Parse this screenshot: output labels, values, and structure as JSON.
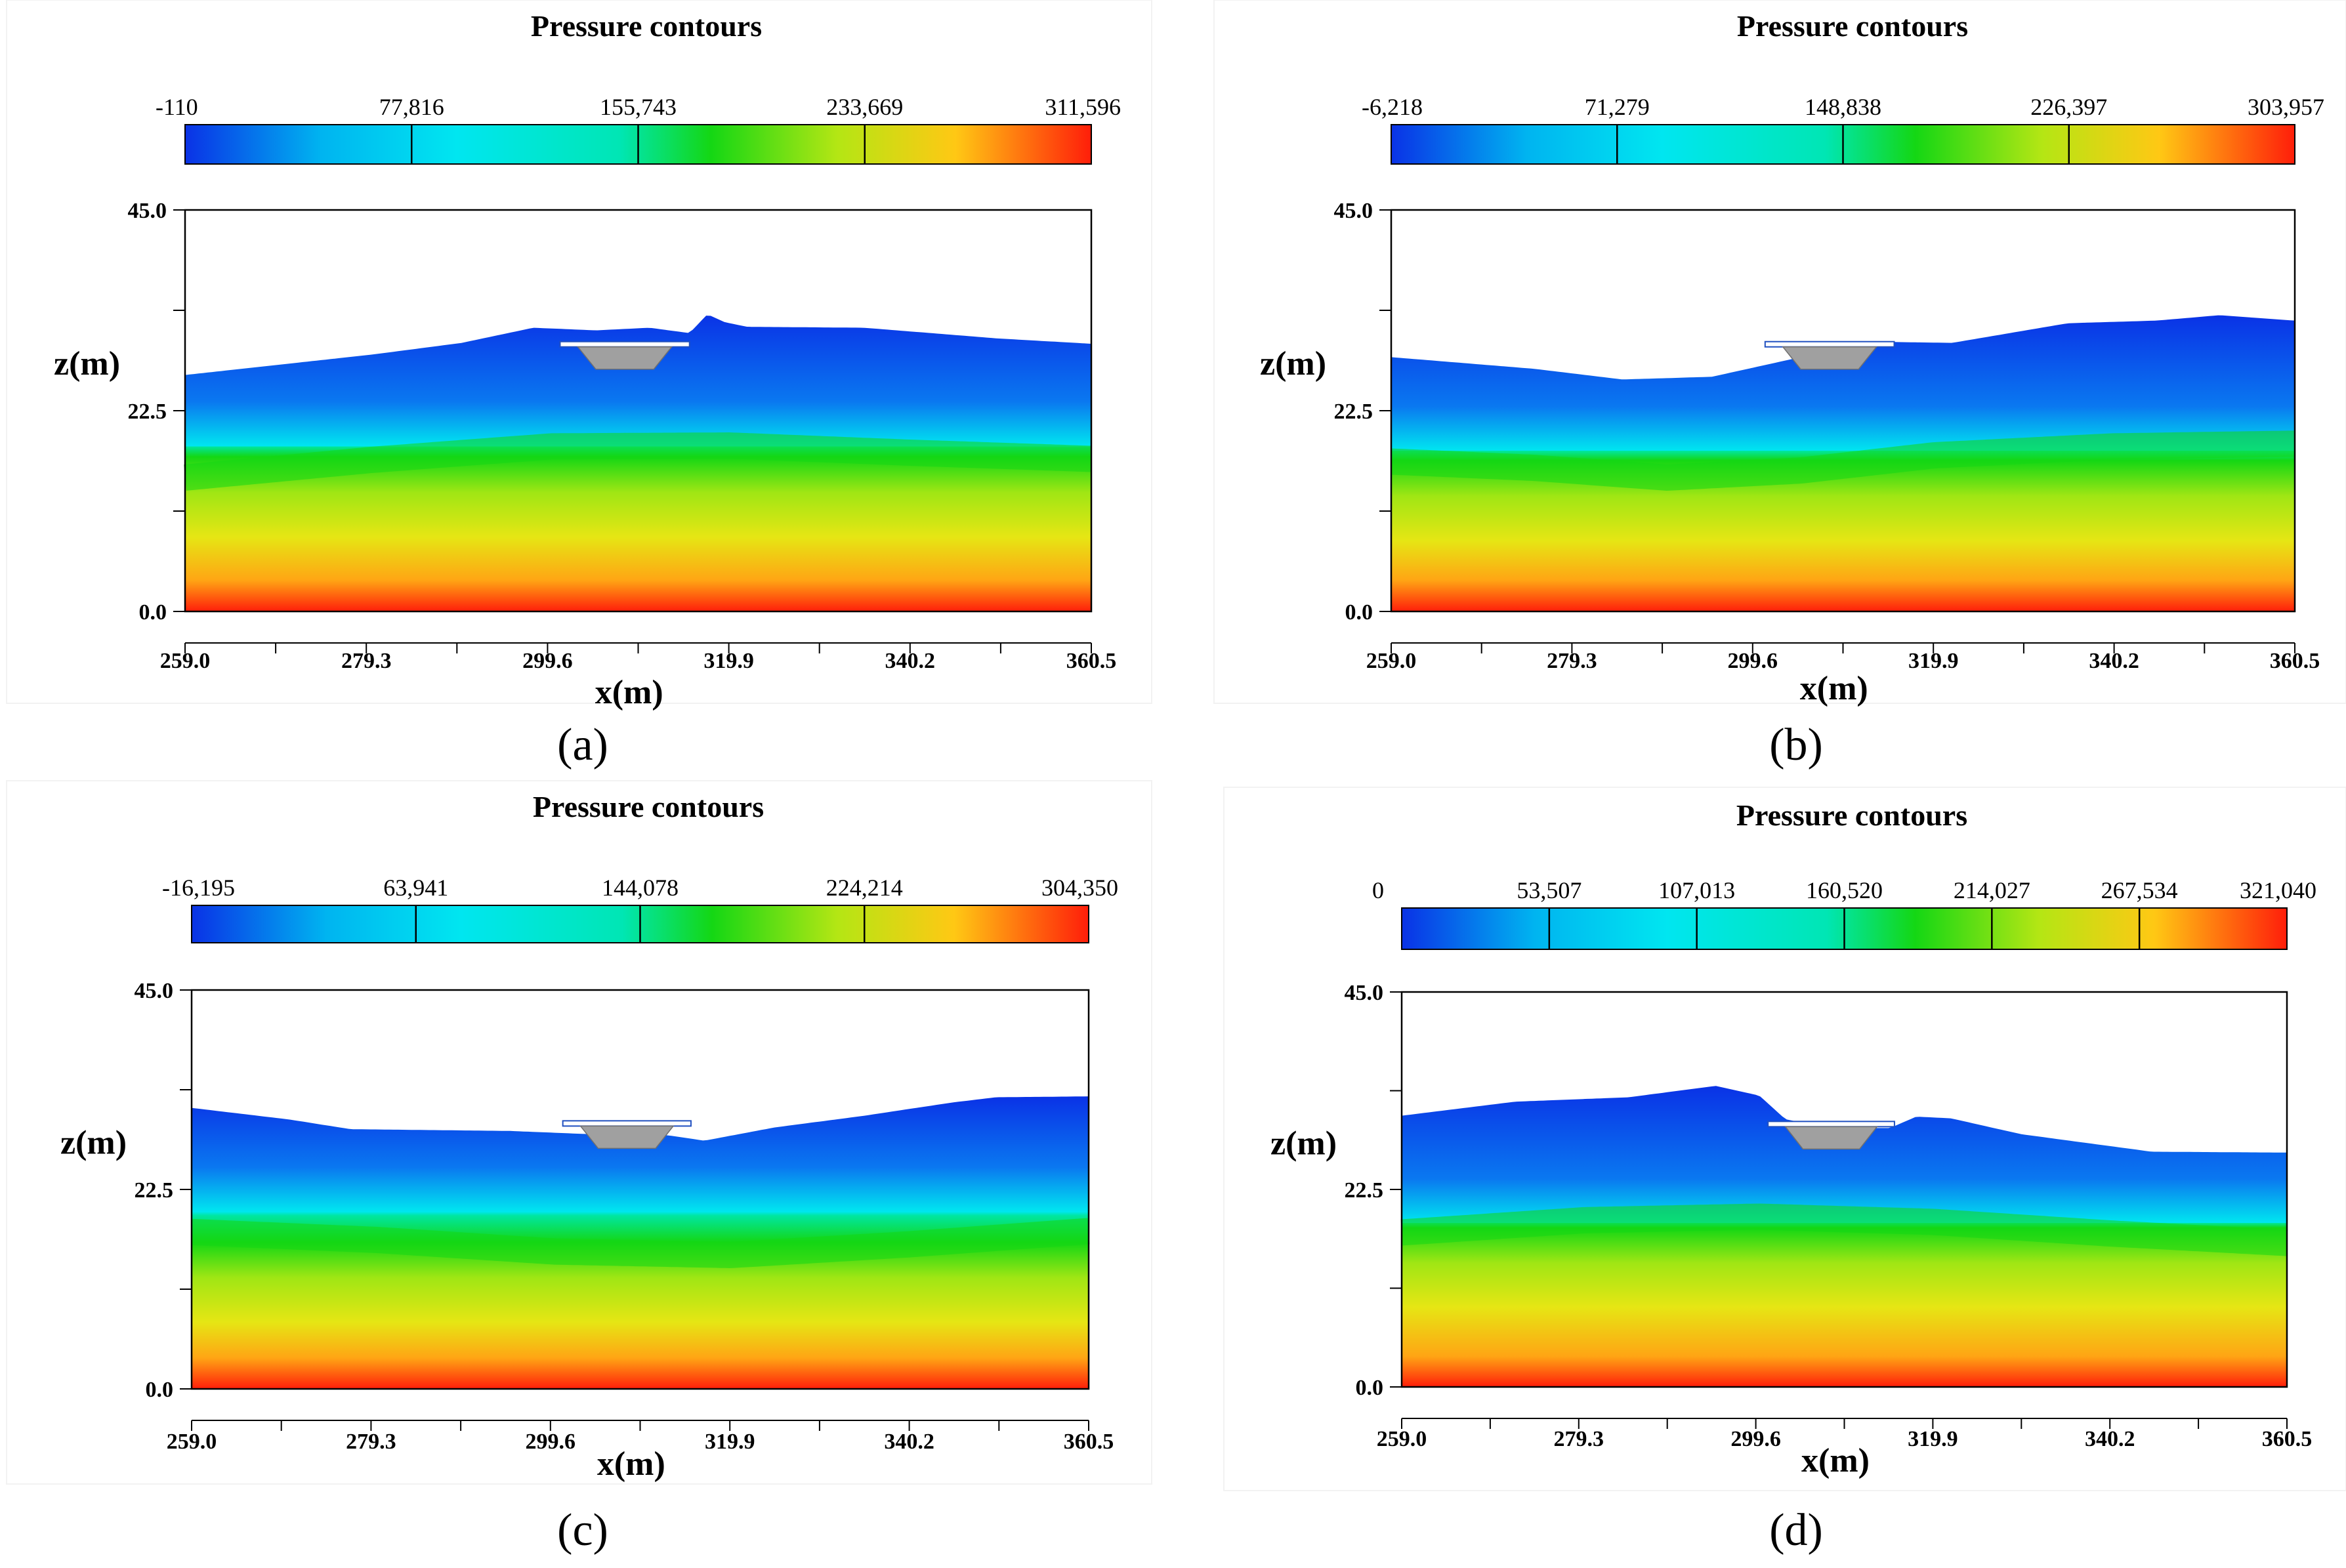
{
  "panels": [
    {
      "id": "a",
      "title": "Pressure contours",
      "label": "(a)",
      "colorbar_ticks": [
        "-110",
        "77,816",
        "155,743",
        "233,669",
        "311,596"
      ],
      "z_ticks": [
        "45.0",
        "22.5",
        "0.0"
      ],
      "x_ticks": [
        "259.0",
        "279.3",
        "299.6",
        "319.9",
        "340.2",
        "360.5"
      ],
      "xlabel": "x(m)",
      "ylabel": "z(m)",
      "surface_z": [
        [
          259.0,
          26.5
        ],
        [
          280.0,
          28.8
        ],
        [
          290.0,
          30.1
        ],
        [
          298.0,
          31.8
        ],
        [
          305.0,
          31.5
        ],
        [
          311.0,
          31.8
        ],
        [
          315.5,
          31.2
        ],
        [
          317.5,
          33.3
        ],
        [
          319.5,
          32.4
        ],
        [
          322.0,
          31.9
        ],
        [
          335.0,
          31.8
        ],
        [
          350.0,
          30.6
        ],
        [
          360.5,
          30.0
        ]
      ],
      "green_band_z": [
        [
          259.0,
          15.0
        ],
        [
          280.0,
          17.0
        ],
        [
          300.0,
          18.5
        ],
        [
          320.0,
          18.6
        ],
        [
          340.0,
          17.8
        ],
        [
          360.5,
          17.1
        ]
      ]
    },
    {
      "id": "b",
      "title": "Pressure contours",
      "label": "(b)",
      "colorbar_ticks": [
        "-6,218",
        "71,279",
        "148,838",
        "226,397",
        "303,957"
      ],
      "z_ticks": [
        "45.0",
        "22.5",
        "0.0"
      ],
      "x_ticks": [
        "259.0",
        "279.3",
        "299.6",
        "319.9",
        "340.2",
        "360.5"
      ],
      "xlabel": "x(m)",
      "ylabel": "z(m)",
      "surface_z": [
        [
          259.0,
          28.5
        ],
        [
          275.0,
          27.2
        ],
        [
          285.0,
          26.0
        ],
        [
          295.0,
          26.3
        ],
        [
          305.0,
          28.5
        ],
        [
          315.0,
          30.2
        ],
        [
          322.0,
          30.1
        ],
        [
          335.0,
          32.3
        ],
        [
          345.0,
          32.6
        ],
        [
          352.0,
          33.2
        ],
        [
          360.5,
          32.6
        ]
      ],
      "green_band_z": [
        [
          259.0,
          16.8
        ],
        [
          275.0,
          16.1
        ],
        [
          290.0,
          15.0
        ],
        [
          305.0,
          15.8
        ],
        [
          320.0,
          17.5
        ],
        [
          340.0,
          18.5
        ],
        [
          360.5,
          18.8
        ]
      ]
    },
    {
      "id": "c",
      "title": "Pressure contours",
      "label": "(c)",
      "colorbar_ticks": [
        "-16,195",
        "63,941",
        "144,078",
        "224,214",
        "304,350"
      ],
      "z_ticks": [
        "45.0",
        "22.5",
        "0.0"
      ],
      "x_ticks": [
        "259.0",
        "279.3",
        "299.6",
        "319.9",
        "340.2",
        "360.5"
      ],
      "xlabel": "x(m)",
      "ylabel": "z(m)",
      "surface_z": [
        [
          259.0,
          31.7
        ],
        [
          270.0,
          30.4
        ],
        [
          277.0,
          29.3
        ],
        [
          295.0,
          29.1
        ],
        [
          305.0,
          28.7
        ],
        [
          313.0,
          28.6
        ],
        [
          317.0,
          28.0
        ],
        [
          325.0,
          29.5
        ],
        [
          335.0,
          30.8
        ],
        [
          345.0,
          32.3
        ],
        [
          350.0,
          32.9
        ],
        [
          360.5,
          33.0
        ]
      ],
      "green_band_z": [
        [
          259.0,
          17.7
        ],
        [
          280.0,
          16.8
        ],
        [
          300.0,
          15.5
        ],
        [
          320.0,
          15.1
        ],
        [
          340.0,
          16.3
        ],
        [
          360.5,
          17.8
        ]
      ]
    },
    {
      "id": "d",
      "title": "Pressure contours",
      "label": "(d)",
      "colorbar_ticks": [
        "0",
        "53,507",
        "107,013",
        "160,520",
        "214,027",
        "267,534",
        "321,040"
      ],
      "z_ticks": [
        "45.0",
        "22.5",
        "0.0"
      ],
      "x_ticks": [
        "259.0",
        "279.3",
        "299.6",
        "319.9",
        "340.2",
        "360.5"
      ],
      "xlabel": "x(m)",
      "ylabel": "z(m)",
      "surface_z": [
        [
          259.0,
          30.9
        ],
        [
          272.0,
          32.5
        ],
        [
          285.0,
          33.0
        ],
        [
          295.0,
          34.3
        ],
        [
          300.0,
          33.2
        ],
        [
          303.0,
          30.5
        ],
        [
          308.0,
          29.5
        ],
        [
          315.0,
          29.5
        ],
        [
          318.0,
          30.8
        ],
        [
          322.0,
          30.6
        ],
        [
          330.0,
          28.8
        ],
        [
          345.0,
          26.8
        ],
        [
          360.5,
          26.7
        ]
      ],
      "green_band_z": [
        [
          259.0,
          17.6
        ],
        [
          280.0,
          19.0
        ],
        [
          300.0,
          19.4
        ],
        [
          320.0,
          18.8
        ],
        [
          340.0,
          17.5
        ],
        [
          360.5,
          16.4
        ]
      ]
    }
  ],
  "colors": {
    "water_top": "#0a32e6",
    "cyan": "#00e6f0",
    "green": "#14d714",
    "yellow": "#e6e614",
    "orange": "#ffa514",
    "bottom": "#ff1e0a",
    "structure": "#a0a0a0"
  }
}
